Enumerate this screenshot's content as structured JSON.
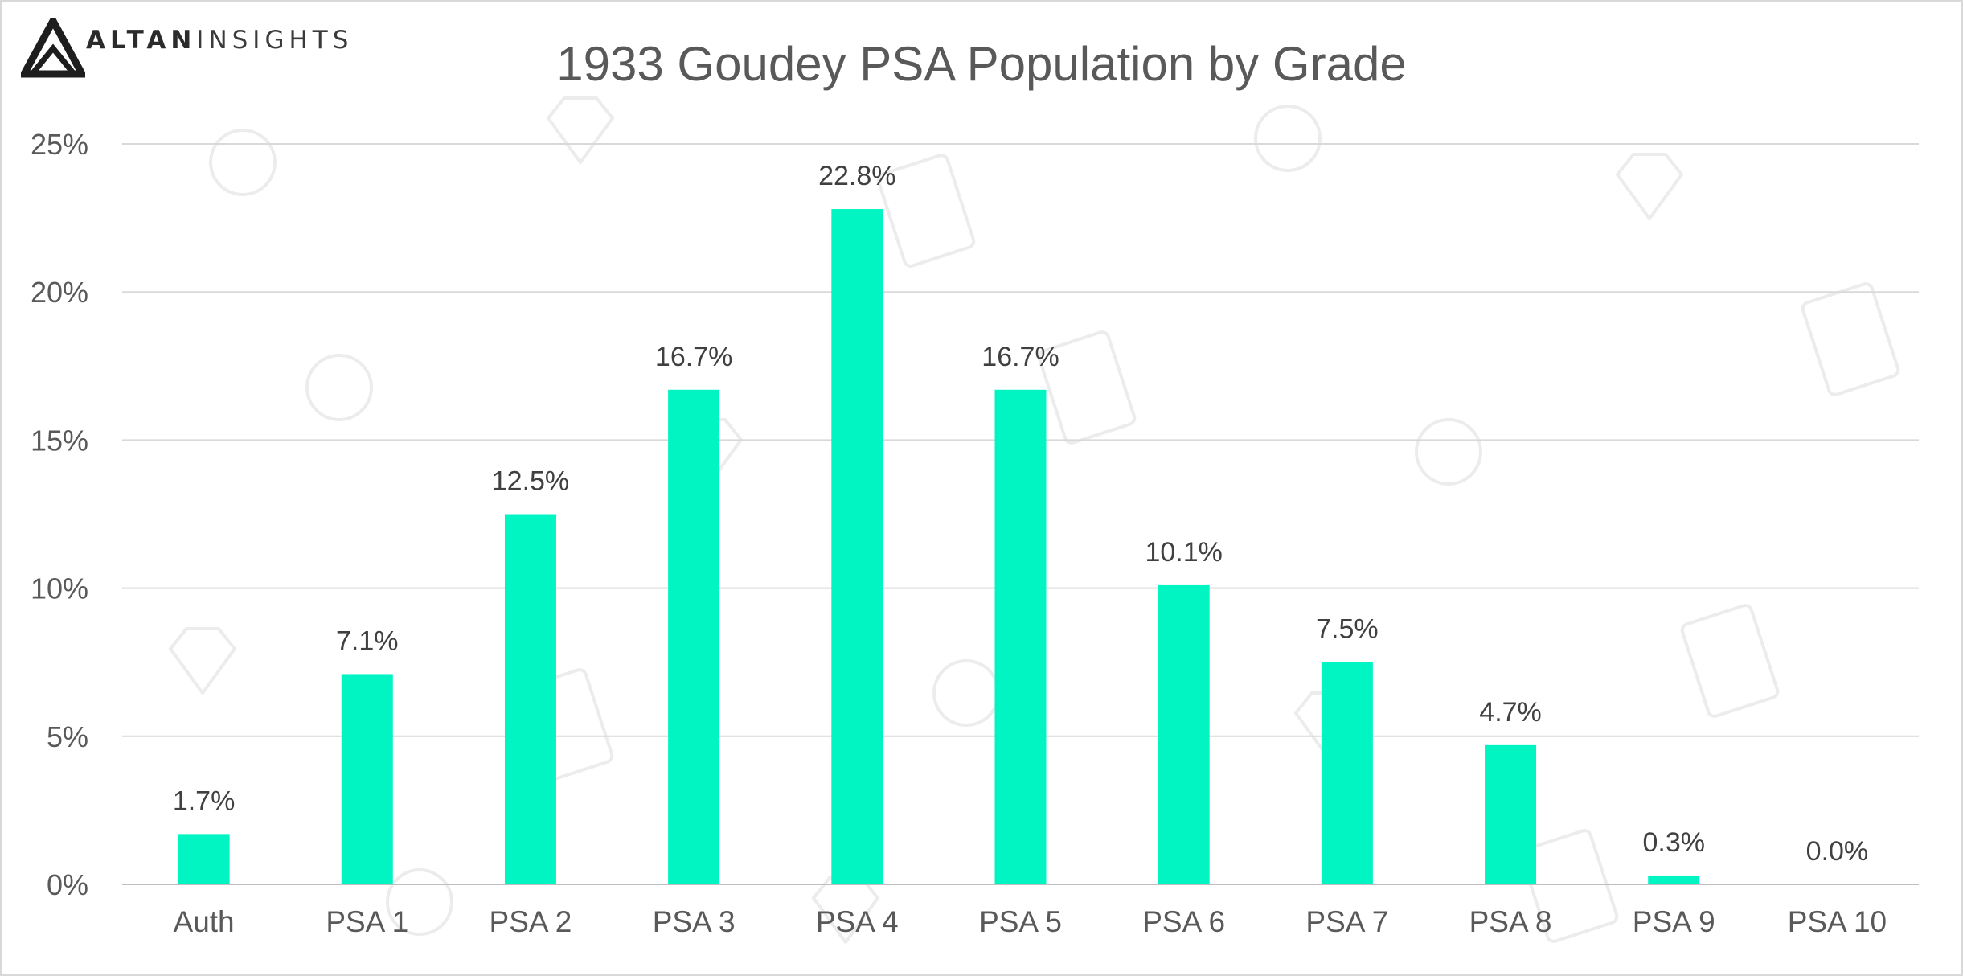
{
  "brand": {
    "name_bold": "ALTAN",
    "name_light": "INSIGHTS",
    "logo_icon": "altan-triangle-logo"
  },
  "colors": {
    "bar": "#00F5C3",
    "grid": "#D9D9D9",
    "text": "#595959",
    "label": "#404040"
  },
  "chart_data": {
    "type": "bar",
    "title": "1933 Goudey PSA Population by Grade",
    "xlabel": "",
    "ylabel": "",
    "categories": [
      "Auth",
      "PSA 1",
      "PSA 2",
      "PSA 3",
      "PSA 4",
      "PSA 5",
      "PSA 6",
      "PSA 7",
      "PSA 8",
      "PSA 9",
      "PSA 10"
    ],
    "values": [
      1.7,
      7.1,
      12.5,
      16.7,
      22.8,
      16.7,
      10.1,
      7.5,
      4.7,
      0.3,
      0.0
    ],
    "data_labels": [
      "1.7%",
      "7.1%",
      "12.5%",
      "16.7%",
      "22.8%",
      "16.7%",
      "10.1%",
      "7.5%",
      "4.7%",
      "0.3%",
      "0.0%"
    ],
    "ylim": [
      0,
      25
    ],
    "yticks": [
      0,
      5,
      10,
      15,
      20,
      25
    ],
    "ytick_labels": [
      "0%",
      "5%",
      "10%",
      "15%",
      "20%",
      "25%"
    ],
    "grid": true,
    "legend": "none"
  }
}
